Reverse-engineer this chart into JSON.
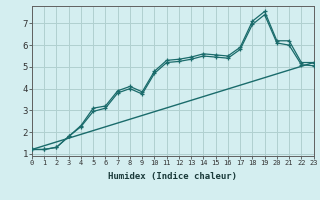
{
  "xlabel": "Humidex (Indice chaleur)",
  "bg_color": "#d4eef0",
  "grid_color": "#b0d0d0",
  "line_color": "#1a6b6b",
  "line1_x": [
    0,
    1,
    2,
    3,
    4,
    5,
    6,
    7,
    8,
    9,
    10,
    11,
    12,
    13,
    14,
    15,
    16,
    17,
    18,
    19,
    20,
    21,
    22,
    23
  ],
  "line1_y": [
    1.2,
    1.2,
    1.3,
    1.8,
    2.3,
    3.1,
    3.2,
    3.9,
    4.1,
    3.85,
    4.8,
    5.3,
    5.35,
    5.45,
    5.6,
    5.55,
    5.5,
    5.9,
    7.1,
    7.55,
    6.2,
    6.2,
    5.2,
    5.2
  ],
  "line2_x": [
    0,
    1,
    2,
    3,
    4,
    5,
    6,
    7,
    8,
    9,
    10,
    11,
    12,
    13,
    14,
    15,
    16,
    17,
    18,
    19,
    20,
    21,
    22,
    23
  ],
  "line2_y": [
    1.2,
    1.2,
    1.3,
    1.8,
    2.25,
    2.95,
    3.1,
    3.8,
    4.0,
    3.75,
    4.7,
    5.2,
    5.25,
    5.35,
    5.5,
    5.45,
    5.4,
    5.8,
    6.95,
    7.4,
    6.1,
    6.0,
    5.1,
    5.05
  ],
  "trend_x": [
    0,
    23
  ],
  "trend_y": [
    1.2,
    5.2
  ],
  "xlim": [
    0,
    23
  ],
  "ylim": [
    0.9,
    7.8
  ],
  "yticks": [
    1,
    2,
    3,
    4,
    5,
    6,
    7
  ],
  "xticks": [
    0,
    1,
    2,
    3,
    4,
    5,
    6,
    7,
    8,
    9,
    10,
    11,
    12,
    13,
    14,
    15,
    16,
    17,
    18,
    19,
    20,
    21,
    22,
    23
  ]
}
